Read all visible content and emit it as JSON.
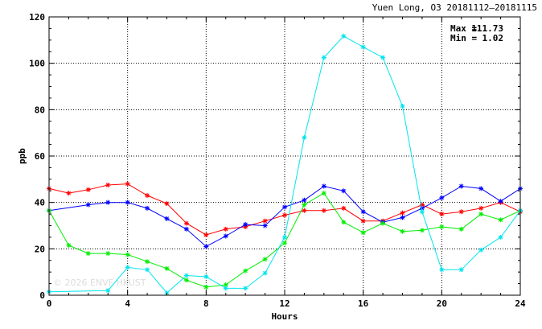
{
  "chart_data": {
    "type": "line",
    "title": "Yuen Long, O3 20181112–20181115",
    "xlabel": "Hours",
    "ylabel": "ppb",
    "xlim": [
      0,
      24
    ],
    "ylim": [
      0,
      120
    ],
    "xticks": [
      0,
      4,
      8,
      12,
      16,
      20,
      24
    ],
    "yticks": [
      0,
      20,
      40,
      60,
      80,
      100,
      120
    ],
    "grid": true,
    "stats": {
      "max_label": "Max =",
      "max_value": "111.73",
      "min_label": "Min =",
      "min_value": "1.02"
    },
    "watermark": "© 2026  ENVF HKUST",
    "series": [
      {
        "color": "#ff0000",
        "x": [
          0,
          1,
          2,
          3,
          4,
          5,
          6,
          7,
          8,
          9,
          10,
          11,
          12,
          13,
          14,
          15,
          16,
          17,
          18,
          19,
          20,
          21,
          22,
          23,
          24
        ],
        "values": [
          46,
          44,
          45.5,
          47.5,
          48,
          43,
          39.5,
          31,
          26,
          28.5,
          29.5,
          32,
          34.5,
          36.5,
          36.5,
          37.5,
          32,
          32,
          35.5,
          39,
          35,
          36,
          37.5,
          40,
          36
        ]
      },
      {
        "color": "#0000ff",
        "x": [
          0,
          2,
          3,
          4,
          5,
          6,
          7,
          8,
          9,
          10,
          11,
          12,
          13,
          14,
          15,
          16,
          17,
          18,
          19,
          20,
          21,
          22,
          23,
          24
        ],
        "values": [
          36.5,
          39,
          40,
          40,
          37.5,
          33,
          28.5,
          21,
          25.5,
          30.5,
          30,
          38,
          41,
          47,
          45,
          36,
          31.5,
          33.5,
          37.5,
          42,
          47,
          46,
          40.5,
          46
        ]
      },
      {
        "color": "#00ee00",
        "x": [
          0,
          1,
          2,
          3,
          4,
          5,
          6,
          7,
          8,
          9,
          10,
          11,
          12,
          13,
          14,
          15,
          16,
          17,
          18,
          19,
          20,
          21,
          22,
          23,
          24
        ],
        "values": [
          36.5,
          21.5,
          18,
          18,
          17.5,
          14.5,
          11.5,
          6.5,
          3.5,
          4.5,
          10.5,
          15.5,
          22.5,
          39,
          44,
          31.5,
          27,
          31,
          27.5,
          28,
          29.5,
          28.5,
          35,
          32.5,
          36.5
        ]
      },
      {
        "color": "#00e5ee",
        "x": [
          0,
          3,
          4,
          5,
          6,
          7,
          8,
          9,
          10,
          11,
          12,
          13,
          14,
          15,
          16,
          17,
          18,
          19,
          20,
          21,
          22,
          23,
          24
        ],
        "values": [
          1.5,
          2,
          12,
          11,
          1,
          8.5,
          8,
          3,
          3,
          9.5,
          25,
          68,
          102.5,
          111.7,
          107,
          102.5,
          81.5,
          36,
          11,
          11,
          19.5,
          25,
          36.5
        ]
      }
    ]
  }
}
